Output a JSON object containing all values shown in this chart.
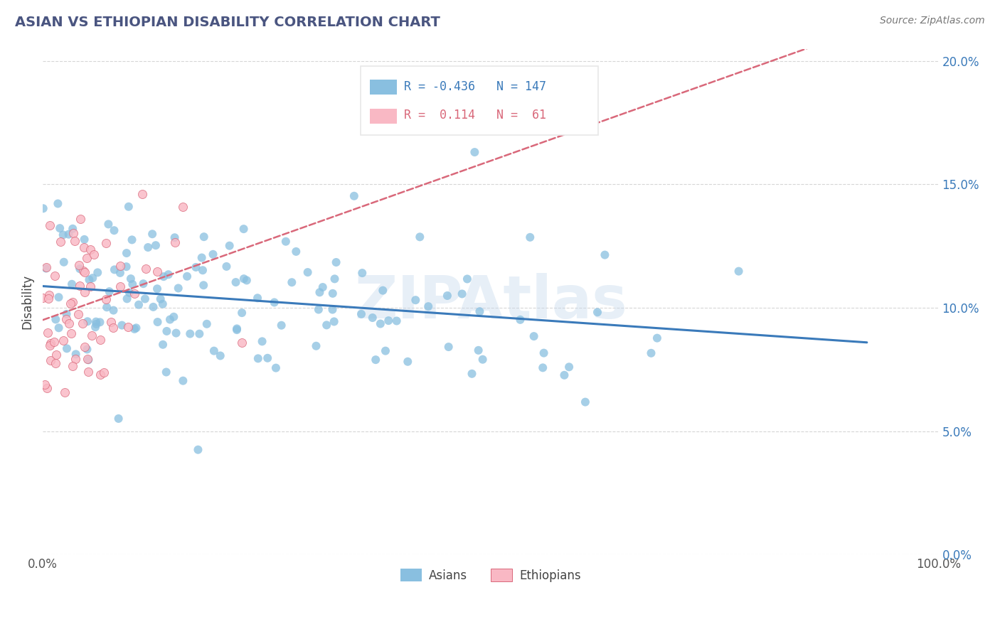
{
  "title": "ASIAN VS ETHIOPIAN DISABILITY CORRELATION CHART",
  "source_text": "Source: ZipAtlas.com",
  "ylabel": "Disability",
  "watermark": "ZIPAtlas",
  "asian_R": -0.436,
  "asian_N": 147,
  "ethiopian_R": 0.114,
  "ethiopian_N": 61,
  "asian_color": "#89bfe0",
  "asian_line_color": "#3a7aba",
  "ethiopian_color": "#f9b8c4",
  "ethiopian_line_color": "#d9687a",
  "background_color": "#ffffff",
  "grid_color": "#bbbbbb",
  "title_color": "#4a5580",
  "xlim": [
    0.0,
    1.0
  ],
  "ylim": [
    0.0,
    0.205
  ],
  "yticks": [
    0.0,
    0.05,
    0.1,
    0.15,
    0.2
  ],
  "ytick_labels_right": [
    "0.0%",
    "5.0%",
    "10.0%",
    "15.0%",
    "20.0%"
  ],
  "xticks": [
    0.0,
    1.0
  ],
  "xtick_labels": [
    "0.0%",
    "100.0%"
  ],
  "legend_blue_color": "#3a7aba",
  "legend_pink_color": "#d9687a",
  "legend_box_color": "#e8e8e8"
}
